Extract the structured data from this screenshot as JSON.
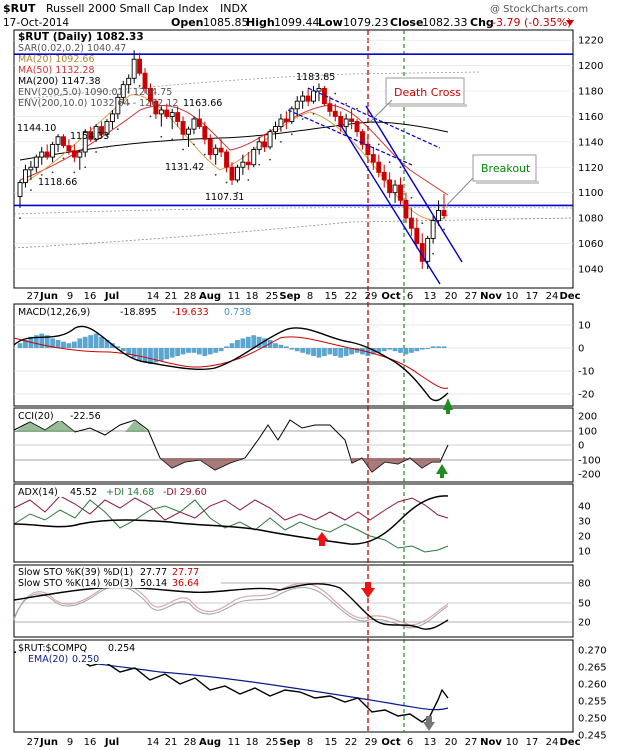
{
  "header": {
    "ticker": "$RUT",
    "name": "Russell 2000 Small Cap Index",
    "exchange": "INDX",
    "date": "17-Oct-2014",
    "watermark": "@ StockCharts.com",
    "open_label": "Open",
    "open": "1085.85",
    "high_label": "High",
    "high": "1099.44",
    "low_label": "Low",
    "low": "1079.23",
    "close_label": "Close",
    "close": "1082.33",
    "chg_label": "Chg",
    "chg": "-3.79 (-0.35%)"
  },
  "colors": {
    "up": "#000000",
    "down": "#cc0000",
    "ma20": "#d4a050",
    "ma50": "#cc3333",
    "ma200": "#000000",
    "env5": "#777777",
    "env10": "#999999",
    "trend": "#0000cc",
    "death": "#cc0000",
    "breakout": "#008800",
    "macd_hist": "#3f95c8"
  },
  "legend": [
    {
      "text": "$RUT (Daily) 1082.33",
      "color": "#000000"
    },
    {
      "text": "SAR(0.02,0.2) 1040.47",
      "color": "#555555"
    },
    {
      "text": "MA(20) 1092.66",
      "color": "#d4a050"
    },
    {
      "text": "MA(50) 1132.28",
      "color": "#cc3333"
    },
    {
      "text": "MA(200) 1147.38",
      "color": "#000000"
    },
    {
      "text": "ENV(200,5.0) 1090.01 - 1204.75",
      "color": "#555555"
    },
    {
      "text": "ENV(200,10.0) 1032.64 - 1262.12",
      "color": "#555555"
    }
  ],
  "annotations": {
    "death_cross": "Death Cross",
    "breakout": "Breakout",
    "price_labels": [
      "1144.10",
      "1154.33",
      "1118.66",
      "1163.66",
      "1131.42",
      "1183.85",
      "1107.31"
    ]
  },
  "panels": {
    "macd": {
      "label": "MACD(12,26,9)",
      "v1": "-18.895",
      "v2": "-19.633",
      "v3": "0.738",
      "ticks": [
        "10",
        "0",
        "-10",
        "-20"
      ]
    },
    "cci": {
      "label": "CCI(20)",
      "v1": "-22.56",
      "ticks": [
        "200",
        "100",
        "0",
        "-100",
        "-200"
      ]
    },
    "adx": {
      "label": "ADX(14)",
      "v1": "45.52",
      "pdi": "+DI 14.68",
      "mdi": "-DI 29.60",
      "ticks": [
        "40",
        "30",
        "20",
        "10"
      ]
    },
    "sto1": {
      "label": "Slow STO %K(39) %D(1)",
      "v1": "27.77",
      "v2": "27.77"
    },
    "sto2": {
      "label": "Slow STO %K(14) %D(3)",
      "v1": "50.14",
      "v2": "36.64",
      "ticks": [
        "80",
        "50",
        "20"
      ]
    },
    "ratio": {
      "label": "$RUT:$COMPQ",
      "v1": "0.254",
      "ema": "EMA(20)",
      "ema_v": "0.250",
      "ticks": [
        "0.270",
        "0.265",
        "0.260",
        "0.255",
        "0.250",
        "0.245"
      ]
    }
  },
  "chart_data": {
    "type": "candlestick",
    "title": "$RUT Russell 2000 Small Cap Index INDX",
    "date": "17-Oct-2014",
    "x_tick_labels": [
      "27",
      "Jun",
      "9",
      "16",
      "Jul",
      "14",
      "21",
      "28",
      "Aug",
      "11",
      "18",
      "25",
      "Sep",
      "8",
      "15",
      "22",
      "29",
      "Oct",
      "6",
      "13",
      "20",
      "27",
      "Nov",
      "10",
      "17",
      "24",
      "Dec"
    ],
    "y_ticks": [
      1040,
      1060,
      1080,
      1100,
      1120,
      1140,
      1160,
      1180,
      1200,
      1220
    ],
    "ylim": [
      1025,
      1228
    ],
    "horizontal_lines": [
      1209,
      1090
    ],
    "ohlc": [
      [
        1097,
        1110,
        1088,
        1108
      ],
      [
        1108,
        1122,
        1104,
        1118
      ],
      [
        1118,
        1125,
        1110,
        1120
      ],
      [
        1120,
        1130,
        1116,
        1128
      ],
      [
        1128,
        1136,
        1122,
        1132
      ],
      [
        1132,
        1138,
        1126,
        1128
      ],
      [
        1128,
        1140,
        1124,
        1138
      ],
      [
        1138,
        1146,
        1132,
        1144
      ],
      [
        1144,
        1146,
        1135,
        1137
      ],
      [
        1137,
        1142,
        1130,
        1133
      ],
      [
        1133,
        1138,
        1124,
        1128
      ],
      [
        1128,
        1134,
        1118,
        1132
      ],
      [
        1132,
        1150,
        1128,
        1148
      ],
      [
        1148,
        1152,
        1140,
        1142
      ],
      [
        1142,
        1154,
        1140,
        1152
      ],
      [
        1152,
        1156,
        1144,
        1146
      ],
      [
        1146,
        1158,
        1144,
        1156
      ],
      [
        1156,
        1165,
        1150,
        1162
      ],
      [
        1162,
        1178,
        1158,
        1175
      ],
      [
        1175,
        1188,
        1170,
        1185
      ],
      [
        1185,
        1193,
        1178,
        1190
      ],
      [
        1190,
        1212,
        1186,
        1205
      ],
      [
        1205,
        1210,
        1192,
        1194
      ],
      [
        1194,
        1198,
        1178,
        1182
      ],
      [
        1182,
        1186,
        1168,
        1172
      ],
      [
        1172,
        1174,
        1158,
        1162
      ],
      [
        1162,
        1168,
        1152,
        1165
      ],
      [
        1165,
        1170,
        1158,
        1160
      ],
      [
        1160,
        1166,
        1150,
        1163
      ],
      [
        1163,
        1168,
        1152,
        1156
      ],
      [
        1156,
        1160,
        1142,
        1146
      ],
      [
        1146,
        1152,
        1136,
        1150
      ],
      [
        1150,
        1160,
        1146,
        1158
      ],
      [
        1158,
        1166,
        1150,
        1152
      ],
      [
        1152,
        1156,
        1138,
        1142
      ],
      [
        1142,
        1146,
        1126,
        1130
      ],
      [
        1130,
        1138,
        1122,
        1135
      ],
      [
        1135,
        1142,
        1128,
        1132
      ],
      [
        1132,
        1134,
        1116,
        1120
      ],
      [
        1120,
        1124,
        1106,
        1110
      ],
      [
        1110,
        1122,
        1108,
        1120
      ],
      [
        1120,
        1130,
        1114,
        1124
      ],
      [
        1124,
        1132,
        1118,
        1122
      ],
      [
        1122,
        1136,
        1120,
        1134
      ],
      [
        1134,
        1144,
        1130,
        1140
      ],
      [
        1140,
        1146,
        1132,
        1136
      ],
      [
        1136,
        1150,
        1134,
        1148
      ],
      [
        1148,
        1156,
        1142,
        1152
      ],
      [
        1152,
        1162,
        1148,
        1158
      ],
      [
        1158,
        1164,
        1150,
        1156
      ],
      [
        1156,
        1168,
        1154,
        1166
      ],
      [
        1166,
        1176,
        1160,
        1172
      ],
      [
        1172,
        1180,
        1166,
        1176
      ],
      [
        1176,
        1182,
        1168,
        1172
      ],
      [
        1172,
        1184,
        1170,
        1180
      ],
      [
        1180,
        1186,
        1172,
        1182
      ],
      [
        1182,
        1184,
        1168,
        1170
      ],
      [
        1170,
        1176,
        1160,
        1164
      ],
      [
        1164,
        1170,
        1156,
        1160
      ],
      [
        1160,
        1164,
        1148,
        1152
      ],
      [
        1152,
        1162,
        1146,
        1158
      ],
      [
        1158,
        1166,
        1150,
        1156
      ],
      [
        1156,
        1158,
        1144,
        1148
      ],
      [
        1148,
        1150,
        1134,
        1138
      ],
      [
        1138,
        1144,
        1126,
        1130
      ],
      [
        1130,
        1136,
        1118,
        1124
      ],
      [
        1124,
        1130,
        1112,
        1116
      ],
      [
        1116,
        1122,
        1104,
        1110
      ],
      [
        1110,
        1116,
        1096,
        1100
      ],
      [
        1100,
        1110,
        1092,
        1106
      ],
      [
        1106,
        1112,
        1090,
        1094
      ],
      [
        1094,
        1100,
        1076,
        1080
      ],
      [
        1080,
        1088,
        1066,
        1072
      ],
      [
        1072,
        1080,
        1056,
        1060
      ],
      [
        1060,
        1068,
        1040,
        1046
      ],
      [
        1046,
        1066,
        1040,
        1064
      ],
      [
        1064,
        1082,
        1060,
        1078
      ],
      [
        1078,
        1094,
        1074,
        1086
      ],
      [
        1086,
        1099,
        1079,
        1082
      ]
    ]
  }
}
